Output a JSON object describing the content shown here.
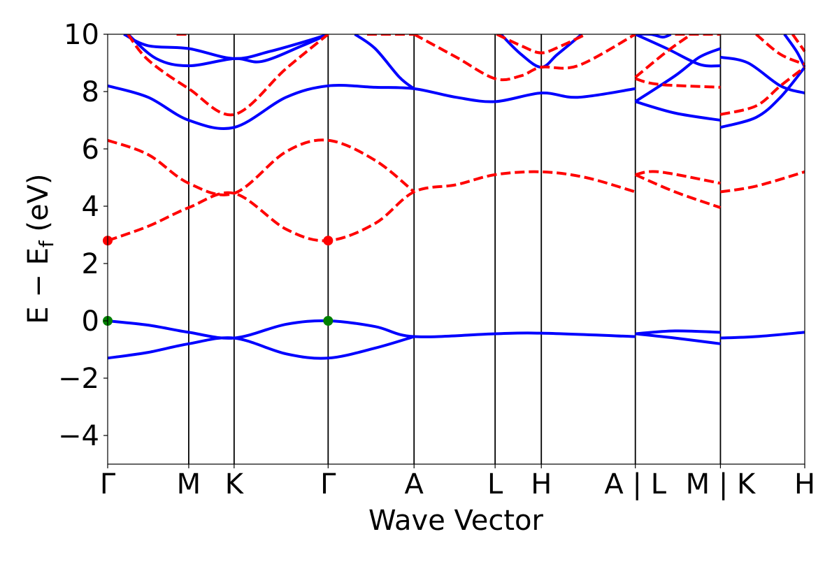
{
  "chart_data": {
    "type": "line",
    "xlabel": "Wave Vector",
    "ylabel_main": "E − E",
    "ylabel_sub": "f",
    "ylabel_unit": " (eV)",
    "ylim": [
      -5,
      10
    ],
    "yticks": [
      -4,
      -2,
      0,
      2,
      4,
      6,
      8,
      10
    ],
    "ytick_labels": [
      "−4",
      "−2",
      "0",
      "2",
      "4",
      "6",
      "8",
      "10"
    ],
    "xlim": [
      0,
      8.6
    ],
    "grid": false,
    "legend": "none",
    "kpoints": [
      {
        "x": 0.0,
        "label": "Γ"
      },
      {
        "x": 1.0,
        "label": "M"
      },
      {
        "x": 1.56,
        "label": "K"
      },
      {
        "x": 2.72,
        "label": "Γ"
      },
      {
        "x": 3.78,
        "label": "A"
      },
      {
        "x": 4.78,
        "label": "L"
      },
      {
        "x": 5.35,
        "label": "H"
      },
      {
        "x": 6.51,
        "label": "A | L"
      },
      {
        "x": 7.56,
        "label": "M | K"
      },
      {
        "x": 8.6,
        "label": "H"
      }
    ],
    "colors": {
      "up": "#0000ff",
      "down": "#ff0000",
      "vbm": "#008000",
      "cbm": "#ff0000",
      "frame": "#000000"
    },
    "series": [
      {
        "spin": "up",
        "style": "solid",
        "points": [
          [
            0,
            0
          ],
          [
            0.5,
            -0.15
          ],
          [
            1,
            -0.4
          ],
          [
            1.56,
            -0.6
          ],
          [
            2.2,
            -0.12
          ],
          [
            2.72,
            0
          ],
          [
            3.3,
            -0.2
          ],
          [
            3.78,
            -0.55
          ],
          [
            4.78,
            -0.45
          ],
          [
            5.35,
            -0.43
          ],
          [
            6.51,
            -0.55
          ]
        ]
      },
      {
        "spin": "up",
        "style": "solid",
        "points": [
          [
            0,
            -1.3
          ],
          [
            0.5,
            -1.1
          ],
          [
            1,
            -0.8
          ],
          [
            1.56,
            -0.6
          ],
          [
            2.2,
            -1.15
          ],
          [
            2.72,
            -1.3
          ],
          [
            3.3,
            -0.95
          ],
          [
            3.78,
            -0.55
          ]
        ]
      },
      {
        "spin": "up",
        "style": "solid",
        "points": [
          [
            0,
            8.2
          ],
          [
            0.5,
            7.8
          ],
          [
            1,
            7.0
          ],
          [
            1.56,
            6.75
          ],
          [
            2.2,
            7.8
          ],
          [
            2.72,
            8.2
          ],
          [
            3.3,
            8.15
          ],
          [
            3.78,
            8.1
          ],
          [
            4.3,
            7.8
          ],
          [
            4.78,
            7.65
          ],
          [
            5.35,
            7.95
          ],
          [
            5.8,
            7.8
          ],
          [
            6.51,
            8.1
          ]
        ]
      },
      {
        "spin": "up",
        "style": "solid",
        "points": [
          [
            0.2,
            10
          ],
          [
            0.5,
            9.6
          ],
          [
            1,
            9.5
          ],
          [
            1.56,
            9.15
          ],
          [
            2,
            9.4
          ],
          [
            2.5,
            9.8
          ],
          [
            2.72,
            10
          ]
        ]
      },
      {
        "spin": "up",
        "style": "solid",
        "points": [
          [
            0.25,
            10
          ],
          [
            0.6,
            9.15
          ],
          [
            1,
            8.9
          ],
          [
            1.56,
            9.15
          ],
          [
            1.9,
            9.05
          ],
          [
            2.4,
            9.6
          ],
          [
            2.72,
            10
          ]
        ]
      },
      {
        "spin": "up",
        "style": "solid",
        "points": [
          [
            3.05,
            10
          ],
          [
            3.3,
            9.5
          ],
          [
            3.6,
            8.5
          ],
          [
            3.78,
            8.1
          ]
        ]
      },
      {
        "spin": "up",
        "style": "solid",
        "points": [
          [
            4.85,
            10
          ],
          [
            5.1,
            9.3
          ],
          [
            5.35,
            8.85
          ],
          [
            5.55,
            9.3
          ],
          [
            5.85,
            10
          ]
        ]
      },
      {
        "spin": "up",
        "style": "solid",
        "points": [
          [
            6.51,
            -0.45
          ],
          [
            7.0,
            -0.35
          ],
          [
            7.56,
            -0.4
          ]
        ]
      },
      {
        "spin": "up",
        "style": "solid",
        "points": [
          [
            6.51,
            -0.45
          ],
          [
            7.0,
            -0.6
          ],
          [
            7.56,
            -0.8
          ]
        ]
      },
      {
        "spin": "up",
        "style": "solid",
        "points": [
          [
            6.51,
            7.65
          ],
          [
            7.0,
            7.25
          ],
          [
            7.56,
            7.0
          ]
        ]
      },
      {
        "spin": "up",
        "style": "solid",
        "points": [
          [
            6.51,
            7.65
          ],
          [
            7.0,
            8.55
          ],
          [
            7.3,
            9.2
          ],
          [
            7.56,
            9.5
          ]
        ]
      },
      {
        "spin": "up",
        "style": "solid",
        "points": [
          [
            6.51,
            10
          ],
          [
            6.9,
            9.5
          ],
          [
            7.3,
            8.95
          ],
          [
            7.56,
            8.9
          ]
        ]
      },
      {
        "spin": "up",
        "style": "solid",
        "points": [
          [
            6.51,
            10
          ],
          [
            6.7,
            10
          ],
          [
            6.85,
            9.9
          ],
          [
            6.95,
            10
          ]
        ]
      },
      {
        "spin": "up",
        "style": "solid",
        "points": [
          [
            7.56,
            -0.6
          ],
          [
            8.0,
            -0.55
          ],
          [
            8.6,
            -0.4
          ]
        ]
      },
      {
        "spin": "up",
        "style": "solid",
        "points": [
          [
            7.56,
            6.75
          ],
          [
            8.0,
            7.1
          ],
          [
            8.3,
            7.8
          ],
          [
            8.6,
            8.85
          ]
        ]
      },
      {
        "spin": "up",
        "style": "solid",
        "points": [
          [
            7.56,
            9.2
          ],
          [
            7.9,
            9.0
          ],
          [
            8.3,
            8.2
          ],
          [
            8.6,
            7.95
          ]
        ]
      },
      {
        "spin": "up",
        "style": "solid",
        "points": [
          [
            8.35,
            10
          ],
          [
            8.5,
            9.4
          ],
          [
            8.6,
            8.85
          ]
        ]
      },
      {
        "spin": "down",
        "style": "dashed",
        "points": [
          [
            0,
            2.8
          ],
          [
            0.5,
            3.3
          ],
          [
            1,
            3.95
          ],
          [
            1.56,
            4.45
          ],
          [
            2.2,
            3.2
          ],
          [
            2.72,
            2.8
          ],
          [
            3.3,
            3.4
          ],
          [
            3.78,
            4.5
          ],
          [
            4.3,
            4.75
          ],
          [
            4.78,
            5.1
          ],
          [
            5.35,
            5.2
          ],
          [
            5.9,
            5.0
          ],
          [
            6.51,
            4.5
          ]
        ]
      },
      {
        "spin": "down",
        "style": "dashed",
        "points": [
          [
            0,
            6.3
          ],
          [
            0.5,
            5.8
          ],
          [
            1,
            4.8
          ],
          [
            1.56,
            4.45
          ],
          [
            2.2,
            5.9
          ],
          [
            2.72,
            6.3
          ],
          [
            3.3,
            5.6
          ],
          [
            3.78,
            4.5
          ]
        ]
      },
      {
        "spin": "down",
        "style": "dashed",
        "points": [
          [
            0.25,
            10
          ],
          [
            0.5,
            9.1
          ],
          [
            1,
            8.1
          ],
          [
            1.56,
            7.2
          ],
          [
            2.2,
            8.8
          ],
          [
            2.72,
            10
          ]
        ]
      },
      {
        "spin": "down",
        "style": "dashed",
        "points": [
          [
            0.85,
            10
          ],
          [
            1.0,
            10
          ]
        ]
      },
      {
        "spin": "down",
        "style": "dashed",
        "points": [
          [
            3.2,
            10
          ],
          [
            3.78,
            10
          ]
        ]
      },
      {
        "spin": "down",
        "style": "dashed",
        "points": [
          [
            3.78,
            10
          ],
          [
            4.3,
            9.2
          ],
          [
            4.78,
            8.45
          ],
          [
            5.1,
            8.55
          ],
          [
            5.35,
            8.85
          ],
          [
            5.8,
            8.9
          ],
          [
            6.51,
            10
          ]
        ]
      },
      {
        "spin": "down",
        "style": "dashed",
        "points": [
          [
            4.8,
            10
          ],
          [
            5.1,
            9.6
          ],
          [
            5.35,
            9.35
          ],
          [
            5.6,
            9.6
          ],
          [
            5.9,
            10
          ]
        ]
      },
      {
        "spin": "down",
        "style": "dashed",
        "points": [
          [
            6.51,
            10
          ],
          [
            6.51,
            10
          ]
        ]
      },
      {
        "spin": "down",
        "style": "dashed",
        "points": [
          [
            6.51,
            5.1
          ],
          [
            7.0,
            4.5
          ],
          [
            7.56,
            3.95
          ]
        ]
      },
      {
        "spin": "down",
        "style": "dashed",
        "points": [
          [
            6.51,
            5.1
          ],
          [
            6.8,
            5.2
          ],
          [
            7.56,
            4.8
          ]
        ]
      },
      {
        "spin": "down",
        "style": "dashed",
        "points": [
          [
            6.51,
            8.45
          ],
          [
            6.8,
            8.25
          ],
          [
            7.56,
            8.15
          ]
        ]
      },
      {
        "spin": "down",
        "style": "dashed",
        "points": [
          [
            6.51,
            8.5
          ],
          [
            6.9,
            9.4
          ],
          [
            7.2,
            10
          ]
        ]
      },
      {
        "spin": "down",
        "style": "dashed",
        "points": [
          [
            7.0,
            10
          ],
          [
            7.56,
            10
          ]
        ]
      },
      {
        "spin": "down",
        "style": "dashed",
        "points": [
          [
            7.56,
            4.5
          ],
          [
            8.0,
            4.7
          ],
          [
            8.6,
            5.2
          ]
        ]
      },
      {
        "spin": "down",
        "style": "dashed",
        "points": [
          [
            7.56,
            7.2
          ],
          [
            8.0,
            7.5
          ],
          [
            8.3,
            8.2
          ],
          [
            8.6,
            8.85
          ]
        ]
      },
      {
        "spin": "down",
        "style": "dashed",
        "points": [
          [
            8.0,
            10
          ],
          [
            8.3,
            9.3
          ],
          [
            8.6,
            8.95
          ]
        ]
      },
      {
        "spin": "down",
        "style": "dashed",
        "points": [
          [
            8.45,
            10
          ],
          [
            8.6,
            9.4
          ]
        ]
      }
    ],
    "markers": [
      {
        "kind": "vbm",
        "x": 0,
        "y": 0
      },
      {
        "kind": "vbm",
        "x": 2.72,
        "y": 0
      },
      {
        "kind": "cbm",
        "x": 0,
        "y": 2.8
      },
      {
        "kind": "cbm",
        "x": 2.72,
        "y": 2.8
      }
    ]
  }
}
